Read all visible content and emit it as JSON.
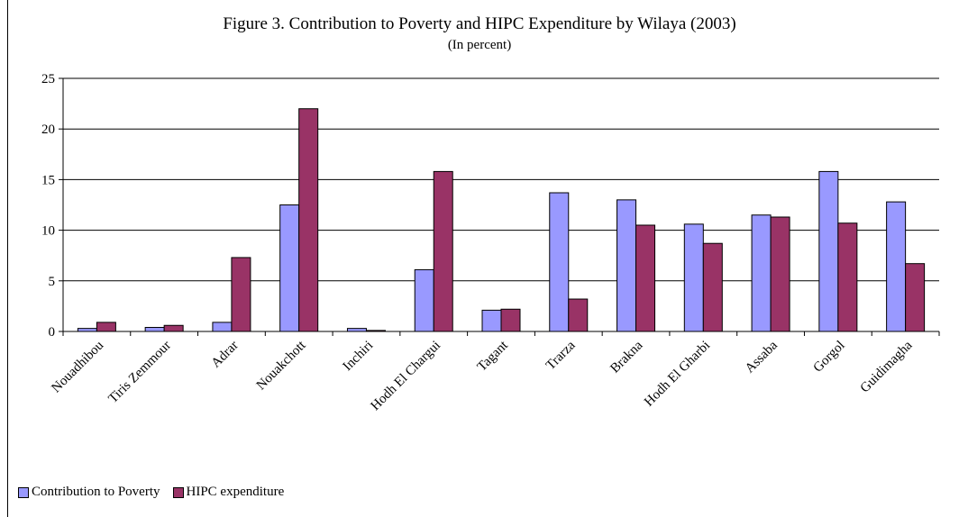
{
  "chart_data": {
    "type": "bar",
    "title": "Figure 3. Contribution to Poverty and HIPC Expenditure by Wilaya (2003)",
    "subtitle": "(In percent)",
    "categories": [
      "Nouadhibou",
      "Tiris Zemmour",
      "Adrar",
      "Nouakchott",
      "Inchiri",
      "Hodh El Chargui",
      "Tagant",
      "Trarza",
      "Brakna",
      "Hodh El Gharbi",
      "Assaba",
      "Gorgol",
      "Guidimagha"
    ],
    "series": [
      {
        "name": "Contribution to Poverty",
        "color": "#9999ff",
        "values": [
          0.3,
          0.4,
          0.9,
          12.5,
          0.3,
          6.1,
          2.1,
          13.7,
          13.0,
          10.6,
          11.5,
          15.8,
          12.8
        ]
      },
      {
        "name": "HIPC expenditure",
        "color": "#993366",
        "values": [
          0.9,
          0.6,
          7.3,
          22.0,
          0.1,
          15.8,
          2.2,
          3.2,
          10.5,
          8.7,
          11.3,
          10.7,
          6.7
        ]
      }
    ],
    "ylim": [
      0,
      25
    ],
    "yticks": [
      0,
      5,
      10,
      15,
      20,
      25
    ],
    "grid": true,
    "legend": "bottom-left"
  }
}
